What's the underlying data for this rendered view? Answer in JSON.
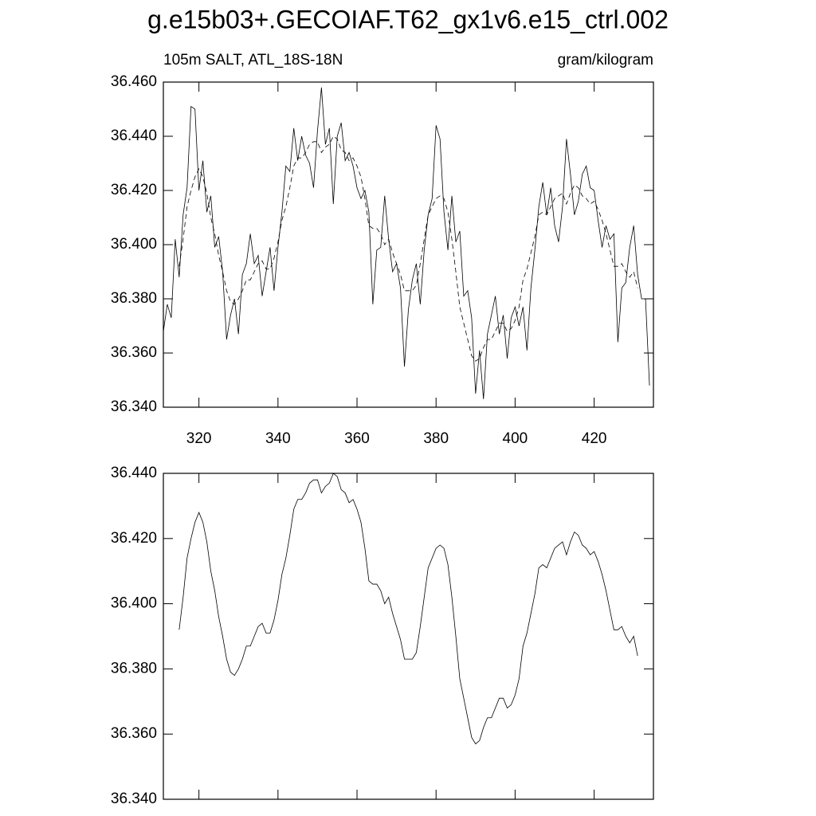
{
  "chart_data": [
    {
      "type": "line",
      "title": "g.e15b03+.GECOIAF.T62_gx1v6.e15_ctrl.002",
      "left_subtitle": "105m SALT, ATL_18S-18N",
      "right_subtitle": "gram/kilogram",
      "xlim": [
        311,
        435
      ],
      "xticks": [
        320,
        340,
        360,
        380,
        400,
        420
      ],
      "xtick_labels": true,
      "ylim": [
        36.34,
        36.46
      ],
      "yticks": [
        {
          "value": 36.34,
          "label": "36.340"
        },
        {
          "value": 36.36,
          "label": "36.360"
        },
        {
          "value": 36.38,
          "label": "36.380"
        },
        {
          "value": 36.4,
          "label": "36.400"
        },
        {
          "value": 36.42,
          "label": "36.420"
        },
        {
          "value": 36.44,
          "label": "36.440"
        },
        {
          "value": 36.46,
          "label": "36.460"
        }
      ],
      "series": [
        {
          "color": "#000000",
          "line_style": "solid",
          "x": [
            311,
            312,
            313,
            314,
            315,
            316,
            317,
            318,
            319,
            320,
            321,
            322,
            323,
            324,
            325,
            326,
            327,
            328,
            329,
            330,
            331,
            332,
            333,
            334,
            335,
            336,
            337,
            338,
            339,
            340,
            341,
            342,
            343,
            344,
            345,
            346,
            347,
            348,
            349,
            350,
            351,
            352,
            353,
            354,
            355,
            356,
            357,
            358,
            359,
            360,
            361,
            362,
            363,
            364,
            365,
            366,
            367,
            368,
            369,
            370,
            371,
            372,
            373,
            374,
            375,
            376,
            377,
            378,
            379,
            380,
            381,
            382,
            383,
            384,
            385,
            386,
            387,
            388,
            389,
            390,
            391,
            392,
            393,
            394,
            395,
            396,
            397,
            398,
            399,
            400,
            401,
            402,
            403,
            404,
            405,
            406,
            407,
            408,
            409,
            410,
            411,
            412,
            413,
            414,
            415,
            416,
            417,
            418,
            419,
            420,
            421,
            422,
            423,
            424,
            425,
            426,
            427,
            428,
            429,
            430,
            431,
            432,
            433,
            434
          ],
          "values": [
            36.368,
            36.378,
            36.373,
            36.402,
            36.388,
            36.411,
            36.421,
            36.451,
            36.45,
            36.42,
            36.431,
            36.412,
            36.418,
            36.399,
            36.403,
            36.39,
            36.365,
            36.374,
            36.38,
            36.367,
            36.389,
            36.393,
            36.404,
            36.393,
            36.396,
            36.381,
            36.39,
            36.399,
            36.383,
            36.399,
            36.412,
            36.429,
            36.427,
            36.443,
            36.431,
            36.44,
            36.433,
            36.43,
            36.421,
            36.442,
            36.458,
            36.437,
            36.443,
            36.415,
            36.44,
            36.445,
            36.431,
            36.434,
            36.429,
            36.421,
            36.417,
            36.42,
            36.412,
            36.378,
            36.398,
            36.399,
            36.418,
            36.402,
            36.39,
            36.393,
            36.384,
            36.355,
            36.376,
            36.387,
            36.393,
            36.378,
            36.398,
            36.411,
            36.417,
            36.444,
            36.439,
            36.412,
            36.398,
            36.418,
            36.401,
            36.405,
            36.381,
            36.383,
            36.373,
            36.345,
            36.361,
            36.343,
            36.367,
            36.374,
            36.381,
            36.367,
            36.374,
            36.358,
            36.373,
            36.377,
            36.37,
            36.377,
            36.361,
            36.384,
            36.398,
            36.414,
            36.423,
            36.411,
            36.421,
            36.407,
            36.401,
            36.414,
            36.439,
            36.426,
            36.411,
            36.416,
            36.426,
            36.429,
            36.421,
            36.42,
            36.409,
            36.399,
            36.407,
            36.402,
            36.404,
            36.364,
            36.384,
            36.386,
            36.399,
            36.407,
            36.389,
            36.38,
            36.38,
            36.348
          ]
        },
        {
          "color": "#000000",
          "line_style": "dashed",
          "x": [
            315,
            316,
            317,
            318,
            319,
            320,
            321,
            322,
            323,
            324,
            325,
            326,
            327,
            328,
            329,
            330,
            331,
            332,
            333,
            334,
            335,
            336,
            337,
            338,
            339,
            340,
            341,
            342,
            343,
            344,
            345,
            346,
            347,
            348,
            349,
            350,
            351,
            352,
            353,
            354,
            355,
            356,
            357,
            358,
            359,
            360,
            361,
            362,
            363,
            364,
            365,
            366,
            367,
            368,
            369,
            370,
            371,
            372,
            373,
            374,
            375,
            376,
            377,
            378,
            379,
            380,
            381,
            382,
            383,
            384,
            385,
            386,
            387,
            388,
            389,
            390,
            391,
            392,
            393,
            394,
            395,
            396,
            397,
            398,
            399,
            400,
            401,
            402,
            403,
            404,
            405,
            406,
            407,
            408,
            409,
            410,
            411,
            412,
            413,
            414,
            415,
            416,
            417,
            418,
            419,
            420,
            421,
            422,
            423,
            424,
            425,
            426,
            427,
            428,
            429,
            430,
            431
          ],
          "values": [
            36.392,
            36.402,
            36.414,
            36.42,
            36.425,
            36.428,
            36.425,
            36.419,
            36.41,
            36.404,
            36.396,
            36.39,
            36.383,
            36.379,
            36.378,
            36.38,
            36.383,
            36.387,
            36.387,
            36.39,
            36.393,
            36.394,
            36.391,
            36.391,
            36.395,
            36.401,
            36.409,
            36.414,
            36.421,
            36.429,
            36.432,
            36.432,
            36.434,
            36.437,
            36.438,
            36.438,
            36.434,
            36.436,
            36.437,
            36.44,
            36.439,
            36.435,
            36.434,
            36.431,
            36.432,
            36.429,
            36.425,
            36.417,
            36.407,
            36.406,
            36.406,
            36.404,
            36.4,
            36.402,
            36.397,
            36.393,
            36.389,
            36.383,
            36.383,
            36.383,
            36.385,
            36.393,
            36.402,
            36.411,
            36.414,
            36.417,
            36.418,
            36.417,
            36.412,
            36.402,
            36.39,
            36.377,
            36.371,
            36.365,
            36.359,
            36.357,
            36.358,
            36.362,
            36.365,
            36.365,
            36.368,
            36.371,
            36.371,
            36.368,
            36.369,
            36.372,
            36.377,
            36.387,
            36.391,
            36.397,
            36.403,
            36.411,
            36.412,
            36.411,
            36.414,
            36.417,
            36.418,
            36.419,
            36.415,
            36.419,
            36.422,
            36.421,
            36.418,
            36.417,
            36.415,
            36.416,
            36.413,
            36.409,
            36.404,
            36.398,
            36.392,
            36.392,
            36.393,
            36.39,
            36.388,
            36.39,
            36.384
          ]
        }
      ]
    },
    {
      "type": "line",
      "xlim": [
        311,
        435
      ],
      "xticks": [
        320,
        340,
        360,
        380,
        400,
        420
      ],
      "xtick_labels": false,
      "ylim": [
        36.34,
        36.44
      ],
      "yticks": [
        {
          "value": 36.34,
          "label": "36.340"
        },
        {
          "value": 36.36,
          "label": "36.360"
        },
        {
          "value": 36.38,
          "label": "36.380"
        },
        {
          "value": 36.4,
          "label": "36.400"
        },
        {
          "value": 36.42,
          "label": "36.420"
        },
        {
          "value": 36.44,
          "label": "36.440"
        }
      ],
      "series": [
        {
          "color": "#000000",
          "line_style": "solid",
          "x": [
            315,
            316,
            317,
            318,
            319,
            320,
            321,
            322,
            323,
            324,
            325,
            326,
            327,
            328,
            329,
            330,
            331,
            332,
            333,
            334,
            335,
            336,
            337,
            338,
            339,
            340,
            341,
            342,
            343,
            344,
            345,
            346,
            347,
            348,
            349,
            350,
            351,
            352,
            353,
            354,
            355,
            356,
            357,
            358,
            359,
            360,
            361,
            362,
            363,
            364,
            365,
            366,
            367,
            368,
            369,
            370,
            371,
            372,
            373,
            374,
            375,
            376,
            377,
            378,
            379,
            380,
            381,
            382,
            383,
            384,
            385,
            386,
            387,
            388,
            389,
            390,
            391,
            392,
            393,
            394,
            395,
            396,
            397,
            398,
            399,
            400,
            401,
            402,
            403,
            404,
            405,
            406,
            407,
            408,
            409,
            410,
            411,
            412,
            413,
            414,
            415,
            416,
            417,
            418,
            419,
            420,
            421,
            422,
            423,
            424,
            425,
            426,
            427,
            428,
            429,
            430,
            431
          ],
          "values": [
            36.392,
            36.402,
            36.414,
            36.42,
            36.425,
            36.428,
            36.425,
            36.419,
            36.41,
            36.404,
            36.396,
            36.39,
            36.383,
            36.379,
            36.378,
            36.38,
            36.383,
            36.387,
            36.387,
            36.39,
            36.393,
            36.394,
            36.391,
            36.391,
            36.395,
            36.401,
            36.409,
            36.414,
            36.421,
            36.429,
            36.432,
            36.432,
            36.434,
            36.437,
            36.438,
            36.438,
            36.434,
            36.436,
            36.437,
            36.44,
            36.439,
            36.435,
            36.434,
            36.431,
            36.432,
            36.429,
            36.425,
            36.417,
            36.407,
            36.406,
            36.406,
            36.404,
            36.4,
            36.402,
            36.397,
            36.393,
            36.389,
            36.383,
            36.383,
            36.383,
            36.385,
            36.393,
            36.402,
            36.411,
            36.414,
            36.417,
            36.418,
            36.417,
            36.412,
            36.402,
            36.39,
            36.377,
            36.371,
            36.365,
            36.359,
            36.357,
            36.358,
            36.362,
            36.365,
            36.365,
            36.368,
            36.371,
            36.371,
            36.368,
            36.369,
            36.372,
            36.377,
            36.387,
            36.391,
            36.397,
            36.403,
            36.411,
            36.412,
            36.411,
            36.414,
            36.417,
            36.418,
            36.419,
            36.415,
            36.419,
            36.422,
            36.421,
            36.418,
            36.417,
            36.415,
            36.416,
            36.413,
            36.409,
            36.404,
            36.398,
            36.392,
            36.392,
            36.393,
            36.39,
            36.388,
            36.39,
            36.384
          ]
        }
      ]
    }
  ]
}
